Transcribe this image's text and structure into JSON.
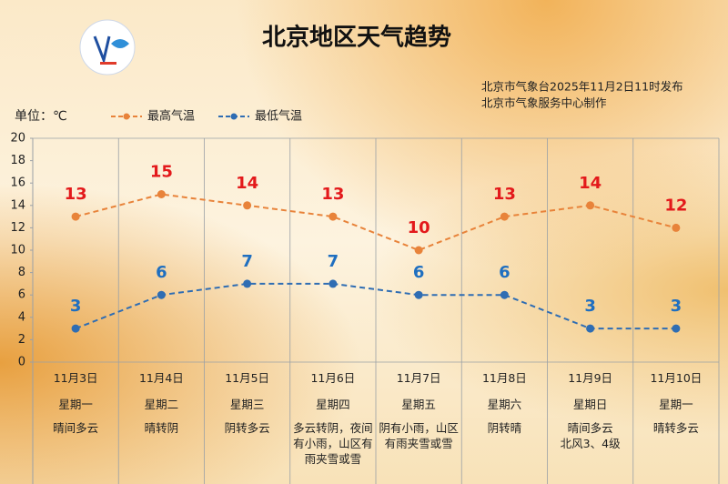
{
  "chart_data": {
    "type": "line",
    "title": "北京地区天气趋势",
    "subtitle": [
      "北京市气象台2025年11月2日11时发布",
      "北京市气象服务中心制作"
    ],
    "unit_label": "单位：℃",
    "categories": [
      "11月3日",
      "11月4日",
      "11月5日",
      "11月6日",
      "11月7日",
      "11月8日",
      "11月9日",
      "11月10日"
    ],
    "weekdays": [
      "星期一",
      "星期二",
      "星期三",
      "星期四",
      "星期五",
      "星期六",
      "星期日",
      "星期一"
    ],
    "weather": [
      "晴间多云",
      "晴转阴",
      "阴转多云",
      "多云转阴，夜间有小雨，山区有雨夹雪或雪",
      "阴有小雨，山区有雨夹雪或雪",
      "阴转晴",
      "晴间多云\n北风3、4级",
      "晴转多云"
    ],
    "series": [
      {
        "name": "最高气温",
        "color": "#e8833a",
        "label_color": "#e3191b",
        "values": [
          13,
          15,
          14,
          13,
          10,
          13,
          14,
          12
        ]
      },
      {
        "name": "最低气温",
        "color": "#2f6db3",
        "label_color": "#1f6fc0",
        "values": [
          3,
          6,
          7,
          7,
          6,
          6,
          3,
          3
        ]
      }
    ],
    "ylim": [
      0,
      20
    ],
    "yticks": [
      0,
      2,
      4,
      6,
      8,
      10,
      12,
      14,
      16,
      18,
      20
    ],
    "grid": false,
    "legend": "top"
  }
}
